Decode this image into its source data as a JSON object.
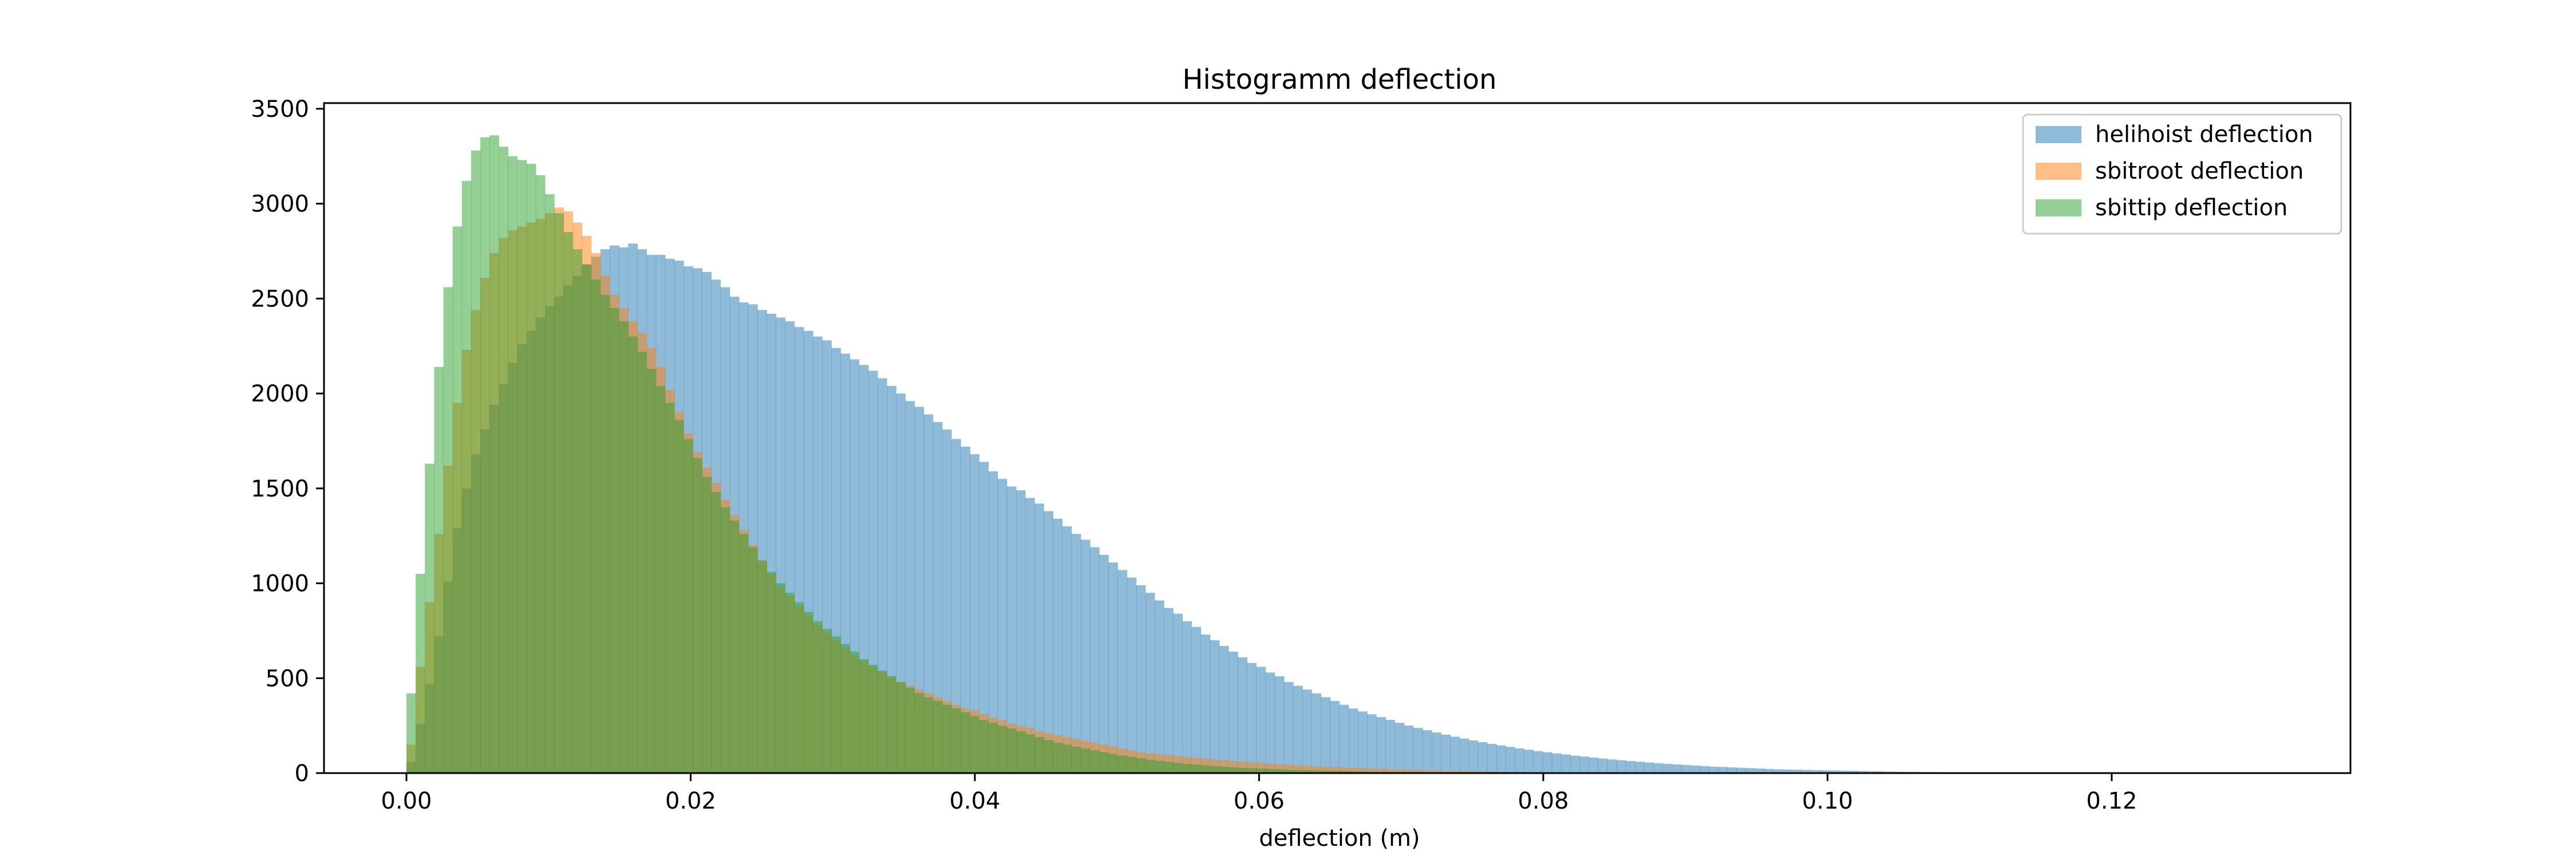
{
  "chart_data": {
    "type": "bar",
    "title": "Histogramm deflection",
    "xlabel": "deflection (m)",
    "ylabel": "",
    "xlim": [
      -0.0058,
      0.1368
    ],
    "ylim": [
      0,
      3530
    ],
    "xticks": [
      {
        "value": 0.0,
        "label": "0.00"
      },
      {
        "value": 0.02,
        "label": "0.02"
      },
      {
        "value": 0.04,
        "label": "0.04"
      },
      {
        "value": 0.06,
        "label": "0.06"
      },
      {
        "value": 0.08,
        "label": "0.08"
      },
      {
        "value": 0.1,
        "label": "0.10"
      },
      {
        "value": 0.12,
        "label": "0.12"
      }
    ],
    "yticks": [
      {
        "value": 0,
        "label": "0"
      },
      {
        "value": 500,
        "label": "500"
      },
      {
        "value": 1000,
        "label": "1000"
      },
      {
        "value": 1500,
        "label": "1500"
      },
      {
        "value": 2000,
        "label": "2000"
      },
      {
        "value": 2500,
        "label": "2500"
      },
      {
        "value": 3000,
        "label": "3000"
      },
      {
        "value": 3500,
        "label": "3500"
      }
    ],
    "grid": false,
    "legend_position": "top-right",
    "series": [
      {
        "name": "helihoist deflection",
        "color": "#1f77b4",
        "opacity": 0.5,
        "bin_start": 0.0,
        "bin_width": 0.00065,
        "values": [
          60,
          260,
          470,
          720,
          1010,
          1290,
          1500,
          1680,
          1810,
          1940,
          2050,
          2160,
          2260,
          2330,
          2400,
          2460,
          2510,
          2570,
          2620,
          2680,
          2720,
          2760,
          2780,
          2770,
          2790,
          2760,
          2730,
          2730,
          2710,
          2700,
          2670,
          2660,
          2640,
          2600,
          2560,
          2510,
          2480,
          2470,
          2440,
          2420,
          2400,
          2380,
          2350,
          2330,
          2300,
          2280,
          2240,
          2210,
          2180,
          2150,
          2120,
          2080,
          2040,
          2000,
          1960,
          1930,
          1890,
          1850,
          1810,
          1760,
          1720,
          1680,
          1640,
          1590,
          1550,
          1510,
          1490,
          1450,
          1420,
          1380,
          1340,
          1300,
          1260,
          1230,
          1190,
          1150,
          1110,
          1070,
          1030,
          990,
          950,
          910,
          870,
          840,
          800,
          770,
          730,
          700,
          670,
          640,
          610,
          580,
          560,
          530,
          510,
          480,
          460,
          440,
          420,
          400,
          380,
          360,
          340,
          325,
          310,
          295,
          280,
          265,
          250,
          238,
          226,
          214,
          203,
          192,
          182,
          172,
          163,
          154,
          146,
          138,
          130,
          123,
          116,
          110,
          104,
          98,
          92,
          87,
          82,
          77,
          72,
          68,
          64,
          60,
          56,
          52,
          49,
          46,
          43,
          40,
          37,
          34,
          32,
          30,
          28,
          26,
          24,
          22,
          20,
          19,
          18,
          17,
          16,
          15,
          14,
          13,
          12,
          11,
          10,
          9,
          8,
          7,
          6,
          6,
          5,
          5,
          4,
          4,
          3,
          3,
          2,
          2,
          2,
          1,
          1,
          1,
          1,
          1,
          0,
          0,
          0,
          0,
          0,
          0,
          0,
          0,
          0,
          0,
          0,
          0,
          0,
          0,
          0,
          0,
          0,
          0,
          0,
          0
        ]
      },
      {
        "name": "sbitroot deflection",
        "color": "#ff7f0e",
        "opacity": 0.5,
        "bin_start": 0.0,
        "bin_width": 0.00065,
        "values": [
          150,
          560,
          900,
          1260,
          1620,
          1950,
          2230,
          2440,
          2610,
          2740,
          2820,
          2860,
          2880,
          2900,
          2920,
          2950,
          2980,
          2960,
          2900,
          2830,
          2740,
          2620,
          2520,
          2450,
          2380,
          2320,
          2240,
          2140,
          2020,
          1900,
          1790,
          1690,
          1610,
          1530,
          1440,
          1360,
          1280,
          1200,
          1120,
          1050,
          980,
          930,
          880,
          830,
          780,
          740,
          700,
          660,
          620,
          590,
          560,
          530,
          500,
          480,
          460,
          440,
          420,
          400,
          380,
          360,
          340,
          330,
          310,
          290,
          280,
          260,
          250,
          240,
          220,
          210,
          200,
          190,
          180,
          170,
          160,
          150,
          140,
          130,
          120,
          110,
          105,
          100,
          95,
          90,
          85,
          80,
          76,
          72,
          68,
          64,
          60,
          56,
          53,
          50,
          47,
          44,
          41,
          38,
          36,
          34,
          32,
          30,
          28,
          26,
          24,
          22,
          20,
          18,
          17,
          16,
          15,
          14,
          13,
          12,
          11,
          10,
          9,
          8,
          7,
          6,
          6,
          5,
          5,
          4,
          4,
          3,
          3,
          2,
          2,
          2,
          1,
          1,
          1,
          1,
          1,
          0,
          0,
          0,
          0,
          0,
          0,
          0,
          0,
          0,
          0,
          0,
          0,
          0,
          0,
          0,
          0,
          0,
          0,
          0,
          0,
          0,
          0,
          0,
          0,
          0,
          0,
          0,
          0,
          0,
          0,
          0,
          0,
          0,
          0,
          0,
          0,
          0,
          0,
          0,
          0,
          0,
          0,
          0,
          0,
          0,
          0,
          0,
          0,
          0,
          0,
          0,
          0,
          0,
          0,
          0
        ]
      },
      {
        "name": "sbittip deflection",
        "color": "#2ca02c",
        "opacity": 0.5,
        "bin_start": 0.0,
        "bin_width": 0.00065,
        "values": [
          420,
          1050,
          1630,
          2140,
          2560,
          2880,
          3120,
          3280,
          3350,
          3360,
          3300,
          3250,
          3230,
          3210,
          3150,
          3050,
          2950,
          2850,
          2760,
          2680,
          2600,
          2520,
          2450,
          2380,
          2300,
          2220,
          2130,
          2040,
          1950,
          1860,
          1760,
          1660,
          1560,
          1480,
          1400,
          1330,
          1260,
          1190,
          1120,
          1060,
          1000,
          950,
          900,
          850,
          800,
          760,
          720,
          680,
          640,
          600,
          570,
          540,
          510,
          480,
          450,
          420,
          400,
          380,
          360,
          340,
          320,
          300,
          280,
          265,
          250,
          235,
          220,
          205,
          190,
          175,
          160,
          150,
          140,
          130,
          120,
          110,
          100,
          92,
          85,
          78,
          71,
          65,
          59,
          54,
          49,
          45,
          41,
          37,
          34,
          31,
          28,
          26,
          24,
          22,
          20,
          18,
          16,
          15,
          14,
          13,
          12,
          11,
          10,
          9,
          8,
          7,
          6,
          6,
          5,
          5,
          4,
          4,
          3,
          3,
          2,
          2,
          2,
          1,
          1,
          1,
          1,
          1,
          0,
          0,
          0,
          0,
          0,
          0,
          0,
          0,
          0,
          0,
          0,
          0,
          0,
          0,
          0,
          0,
          0,
          0,
          0,
          0,
          0,
          0,
          0,
          0,
          0,
          0,
          0,
          0,
          0,
          0,
          0,
          0,
          0,
          0,
          0,
          0,
          0,
          0,
          0,
          0,
          0,
          0,
          0,
          0,
          0,
          0,
          0,
          0,
          0,
          0,
          0,
          0,
          0,
          0,
          0,
          0,
          0,
          0,
          0,
          0,
          0,
          0,
          0,
          0,
          0,
          0
        ]
      }
    ]
  }
}
